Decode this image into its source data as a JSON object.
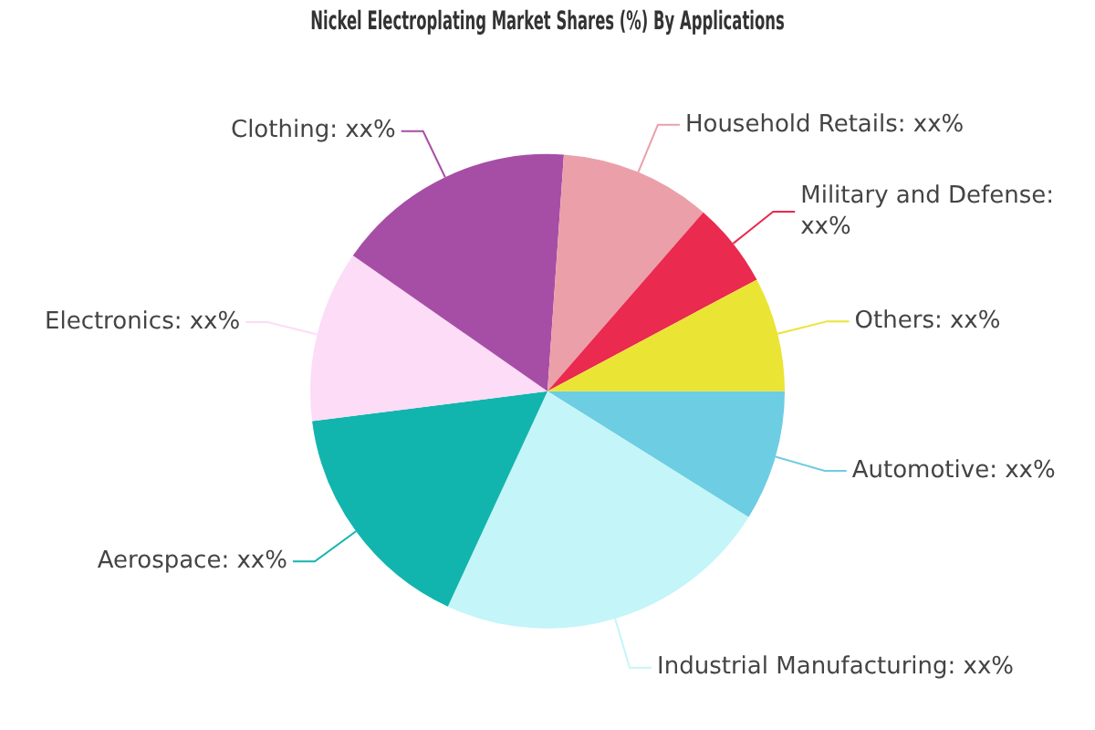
{
  "chart_data": {
    "type": "pie",
    "title": "Nickel Electroplating Market Shares (%) By Applications",
    "categories": [
      "Automotive: xx%",
      "Industrial Manufacturing: xx%",
      "Aerospace: xx%",
      "Electronics: xx%",
      "Clothing: xx%",
      "Household Retails: xx%",
      "Military and Defense: xx%",
      "Others: xx%"
    ],
    "values": [
      8.9,
      23,
      16.1,
      11.7,
      16.4,
      10.3,
      5.8,
      7.8
    ],
    "colors": [
      "#6dcde2",
      "#c4f5f8",
      "#12b5ad",
      "#fddcf7",
      "#a64ea6",
      "#eba0a9",
      "#ea2a4f",
      "#eae434"
    ],
    "legend": false
  }
}
